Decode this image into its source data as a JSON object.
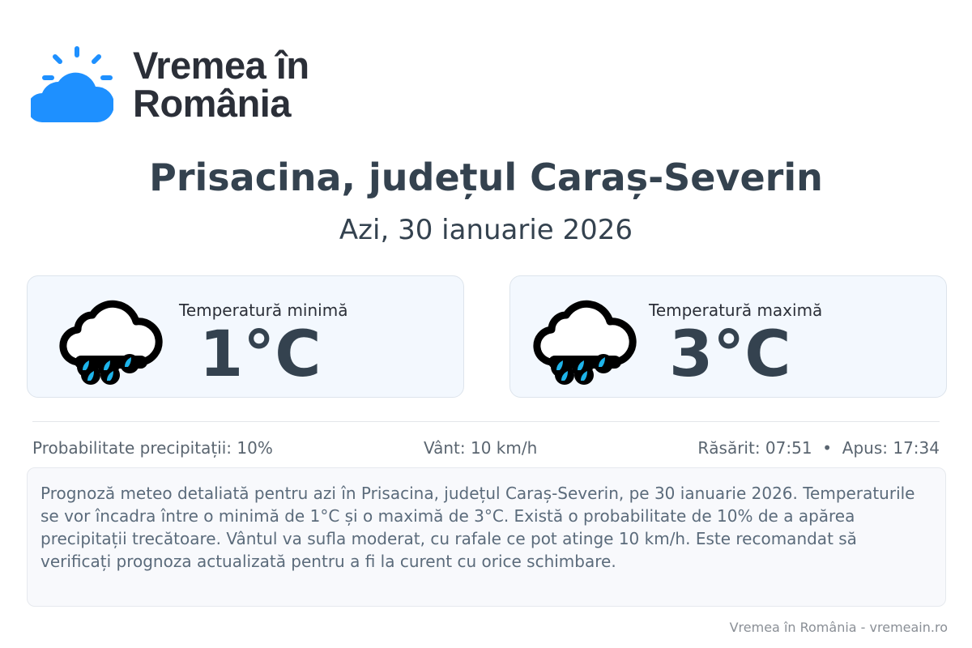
{
  "brand": {
    "name_line1": "Vremea în",
    "name_line2": "România",
    "color": "#1e90ff"
  },
  "header": {
    "title": "Prisacina, județul Caraș-Severin",
    "subtitle": "Azi, 30 ianuarie 2026"
  },
  "cards": [
    {
      "label": "Temperatură minimă",
      "value": "1°C",
      "icon": "rain-cloud-icon"
    },
    {
      "label": "Temperatură maximă",
      "value": "3°C",
      "icon": "rain-cloud-icon"
    }
  ],
  "stats": {
    "precipitation": "Probabilitate precipitații: 10%",
    "wind": "Vânt: 10 km/h",
    "sun": "Răsărit: 07:51  •  Apus: 17:34"
  },
  "description": "Prognoză meteo detaliată pentru azi în Prisacina, județul Caraș-Severin, pe 30 ianuarie 2026. Temperaturile se vor încadra între o minimă de 1°C și o maximă de 3°C. Există o probabilitate de 10% de a apărea precipitații trecătoare. Vântul va sufla moderat, cu rafale ce pot atinge 10 km/h. Este recomandat să verificați prognoza actualizată pentru a fi la curent cu orice schimbare.",
  "footer": "Vremea în România - vremeain.ro"
}
